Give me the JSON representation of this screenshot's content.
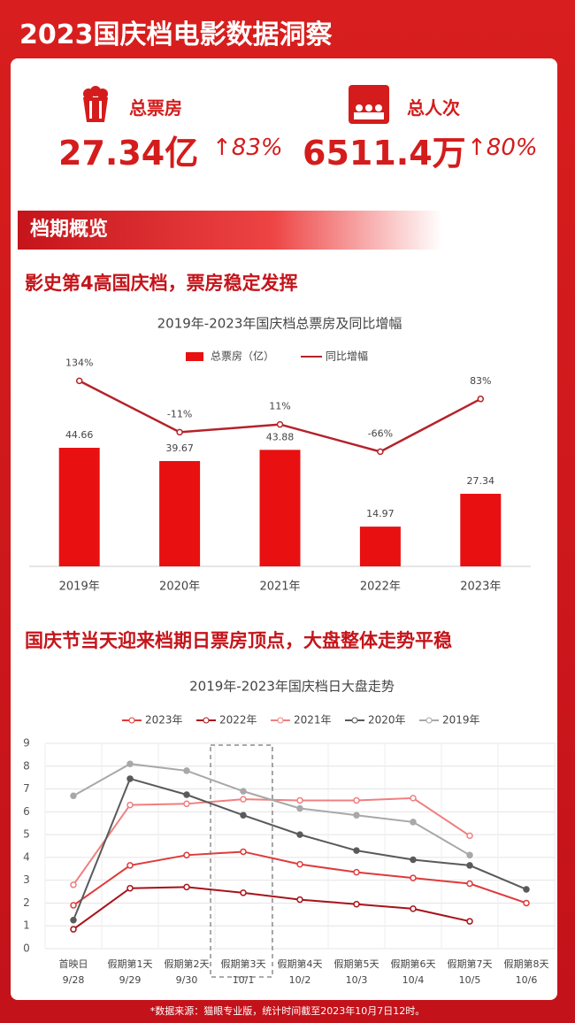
{
  "header": {
    "title": "2023国庆档电影数据洞察"
  },
  "kpis": [
    {
      "label": "总票房",
      "value": "27.34亿",
      "change": "↑83%"
    },
    {
      "label": "总人次",
      "value": "6511.4万",
      "change": "↑80%"
    }
  ],
  "section": "档期概览",
  "headlines": [
    "影史第4高国庆档，票房稳定发挥",
    "国庆节当天迎来档期日票房顶点，大盘整体走势平稳"
  ],
  "footnote": "*数据来源：猫眼专业版，统计时间截至2023年10月7日12时。",
  "chart_data": [
    {
      "type": "bar",
      "title": "2019年-2023年国庆档总票房及同比增幅",
      "categories": [
        "2019年",
        "2020年",
        "2021年",
        "2022年",
        "2023年"
      ],
      "ylim": [
        0,
        80
      ],
      "y2lim": [
        -390,
        210
      ],
      "series": [
        {
          "name": "总票房（亿）",
          "color": "#e81010",
          "values": [
            44.66,
            39.67,
            43.88,
            14.97,
            27.34
          ]
        },
        {
          "name": "同比增幅",
          "color": "#b5222a",
          "type": "line",
          "axis": "y2",
          "values": [
            134,
            -11,
            11,
            -66,
            83
          ],
          "value_labels": [
            "134%",
            "-11%",
            "11%",
            "-66%",
            "83%"
          ]
        }
      ]
    },
    {
      "type": "line",
      "title": "2019年-2023年国庆档日大盘走势",
      "categories": [
        "首映日",
        "假期第1天",
        "假期第2天",
        "假期第3天",
        "假期第4天",
        "假期第5天",
        "假期第6天",
        "假期第7天",
        "假期第8天"
      ],
      "dates": [
        "9/28",
        "9/29",
        "9/30",
        "10/1",
        "10/2",
        "10/3",
        "10/4",
        "10/5",
        "10/6"
      ],
      "ylim": [
        0,
        9
      ],
      "yticks": [
        0,
        1,
        2,
        3,
        4,
        5,
        6,
        7,
        8,
        9
      ],
      "grid": true,
      "series": [
        {
          "name": "2023年",
          "color": "#e03a3a",
          "values": [
            1.9,
            3.65,
            4.1,
            4.25,
            3.7,
            3.35,
            3.1,
            2.85,
            2.0
          ]
        },
        {
          "name": "2022年",
          "color": "#a8121a",
          "values": [
            0.85,
            2.65,
            2.7,
            2.45,
            2.15,
            1.95,
            1.75,
            1.2,
            null
          ]
        },
        {
          "name": "2021年",
          "color": "#f07f7f",
          "values": [
            2.8,
            6.3,
            6.35,
            6.55,
            6.5,
            6.5,
            6.6,
            4.95,
            null
          ]
        },
        {
          "name": "2020年",
          "color": "#5a5a5a",
          "values": [
            1.25,
            7.45,
            6.75,
            5.85,
            5.0,
            4.3,
            3.9,
            3.65,
            2.6
          ]
        },
        {
          "name": "2019年",
          "color": "#a8a8a8",
          "values": [
            6.7,
            8.1,
            7.8,
            6.9,
            6.15,
            5.85,
            5.55,
            4.1,
            null
          ]
        }
      ]
    }
  ]
}
